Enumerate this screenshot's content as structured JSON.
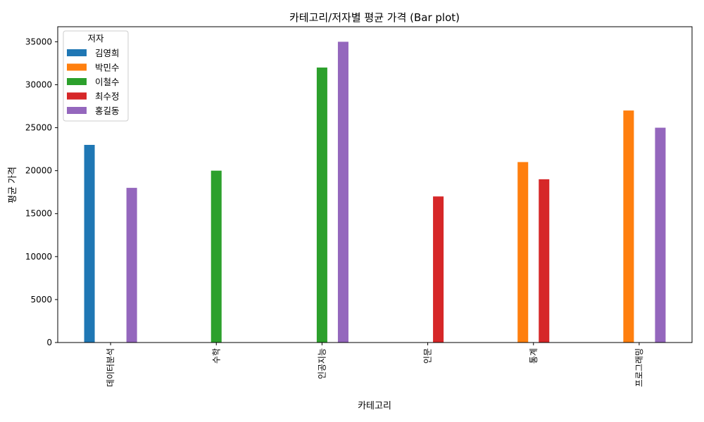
{
  "chart_data": {
    "type": "bar",
    "title": "카테고리/저자별 평균 가격 (Bar plot)",
    "xlabel": "카테고리",
    "ylabel": "평균 가격",
    "categories": [
      "데이터분석",
      "수학",
      "인공지능",
      "인문",
      "통계",
      "프로그래밍"
    ],
    "ylim": [
      0,
      36750
    ],
    "yticks": [
      0,
      5000,
      10000,
      15000,
      20000,
      25000,
      30000,
      35000
    ],
    "grid": false,
    "legend": {
      "title": "저자",
      "position": "top-left"
    },
    "series": [
      {
        "name": "김영희",
        "color": "#1f77b4",
        "values": [
          23000,
          null,
          null,
          null,
          null,
          null
        ]
      },
      {
        "name": "박민수",
        "color": "#ff7f0e",
        "values": [
          null,
          null,
          null,
          null,
          21000,
          27000
        ]
      },
      {
        "name": "이철수",
        "color": "#2ca02c",
        "values": [
          null,
          20000,
          32000,
          null,
          null,
          null
        ]
      },
      {
        "name": "최수정",
        "color": "#d62728",
        "values": [
          null,
          null,
          null,
          17000,
          19000,
          null
        ]
      },
      {
        "name": "홍길동",
        "color": "#9467bd",
        "values": [
          18000,
          null,
          35000,
          null,
          null,
          25000
        ]
      }
    ]
  }
}
